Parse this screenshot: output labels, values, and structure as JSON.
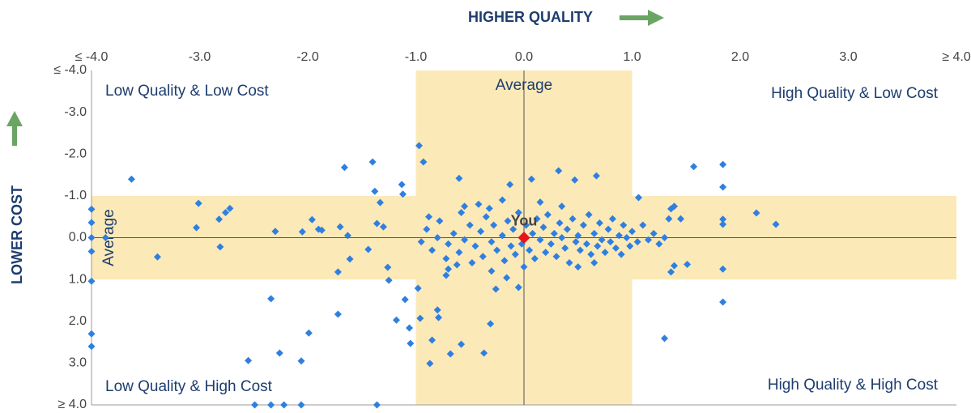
{
  "chart_data": {
    "type": "scatter",
    "x_label": "HIGHER QUALITY",
    "y_label": "LOWER COST",
    "xlim": [
      -4,
      4
    ],
    "ylim": [
      -4,
      4
    ],
    "y_inverted": true,
    "xticks": [
      {
        "value": -4,
        "label": "≤ -4.0"
      },
      {
        "value": -3,
        "label": "-3.0"
      },
      {
        "value": -2,
        "label": "-2.0"
      },
      {
        "value": -1,
        "label": "-1.0"
      },
      {
        "value": 0,
        "label": "0.0"
      },
      {
        "value": 1,
        "label": "1.0"
      },
      {
        "value": 2,
        "label": "2.0"
      },
      {
        "value": 3,
        "label": "3.0"
      },
      {
        "value": 4,
        "label": "≥ 4.0"
      }
    ],
    "yticks": [
      {
        "value": -4,
        "label": "≤ -4.0"
      },
      {
        "value": -3,
        "label": "-3.0"
      },
      {
        "value": -2,
        "label": "-2.0"
      },
      {
        "value": -1,
        "label": "-1.0"
      },
      {
        "value": 0,
        "label": "0.0"
      },
      {
        "value": 1,
        "label": "1.0"
      },
      {
        "value": 2,
        "label": "2.0"
      },
      {
        "value": 3,
        "label": "3.0"
      },
      {
        "value": 4,
        "label": "≥ 4.0"
      }
    ],
    "bands": {
      "x": [
        -1,
        1
      ],
      "y": [
        -1,
        1
      ],
      "color": "#fce9b8"
    },
    "average_labels": [
      "Average",
      "Average"
    ],
    "quadrant_labels": [
      "Low Quality & Low Cost",
      "High Quality & Low Cost",
      "Low Quality & High Cost",
      "High Quality & High Cost"
    ],
    "series": [
      {
        "color": "#2f7fe0",
        "x": [
          -3.63,
          -4,
          -4,
          -4,
          -4,
          -4,
          -4,
          -4,
          -3.87,
          -3.39,
          -3.01,
          -3.03,
          -2.82,
          -2.81,
          -2.76,
          -2.72,
          -2.34,
          -2.3,
          -2.55,
          -2.26,
          -2.49,
          -2.34,
          -2.22,
          -2.06,
          -2.06,
          -1.99,
          -2.05,
          -1.96,
          -1.9,
          -1.87,
          -1.72,
          -1.72,
          -1.7,
          -1.63,
          -1.61,
          -1.66,
          -1.4,
          -1.36,
          -1.38,
          -1.33,
          -1.36,
          -1.44,
          -1.3,
          -1.26,
          -1.25,
          -1.18,
          -1.12,
          -1.13,
          -1.1,
          -1.06,
          -1.05,
          -0.98,
          -0.97,
          -0.93,
          -0.96,
          -0.87,
          -0.85,
          -0.8,
          -0.79,
          -0.68,
          -0.72,
          -0.6,
          -0.58,
          -0.37,
          -0.31,
          -0.26,
          -0.16,
          -0.05,
          -0.13,
          0.07,
          0.32,
          0.47,
          0.67,
          1.06,
          1.3,
          1.36,
          1.39,
          1.51,
          1.57,
          1.84,
          1.84,
          1.84,
          1.84,
          1.84,
          1.84,
          2.15,
          2.33,
          1.39,
          1.36,
          1.45,
          1.34,
          -0.95,
          -0.9,
          -0.85,
          -0.8,
          -0.78,
          -0.72,
          -0.7,
          -0.65,
          -0.6,
          -0.58,
          -0.55,
          -0.5,
          -0.48,
          -0.45,
          -0.4,
          -0.38,
          -0.35,
          -0.3,
          -0.28,
          -0.25,
          -0.2,
          -0.18,
          -0.15,
          -0.12,
          -0.1,
          -0.08,
          -0.05,
          -0.02,
          0.02,
          0.05,
          0.08,
          0.1,
          0.12,
          0.15,
          0.18,
          0.2,
          0.22,
          0.25,
          0.28,
          0.3,
          0.33,
          0.35,
          0.38,
          0.4,
          0.42,
          0.45,
          0.48,
          0.5,
          0.52,
          0.55,
          0.58,
          0.6,
          0.62,
          0.65,
          0.68,
          0.7,
          0.72,
          0.75,
          0.78,
          0.8,
          0.82,
          0.85,
          0.88,
          0.9,
          0.92,
          0.95,
          0.98,
          1.0,
          1.05,
          1.1,
          1.15,
          1.2,
          1.25,
          1.3,
          -0.88,
          -0.62,
          -0.32,
          0.0,
          0.35,
          0.65,
          -0.42,
          -0.2,
          0.15,
          -0.55,
          -0.7,
          -0.3,
          0.5
        ],
        "values": [
          -1.4,
          -0.68,
          -0.36,
          0,
          0.33,
          1.04,
          2.3,
          2.6,
          0,
          0.46,
          -0.82,
          -0.24,
          -0.44,
          0.22,
          -0.6,
          -0.7,
          1.46,
          -0.15,
          2.94,
          2.76,
          4,
          4,
          4,
          4,
          2.95,
          2.28,
          -0.14,
          -0.43,
          -0.2,
          -0.18,
          1.83,
          0.82,
          -0.26,
          -0.05,
          0.51,
          -1.68,
          -1.81,
          4,
          -1.11,
          -0.84,
          -0.34,
          0.28,
          -0.26,
          0.71,
          1.02,
          1.97,
          -1.04,
          -1.27,
          1.48,
          2.16,
          2.53,
          1.21,
          -2.2,
          -1.81,
          1.93,
          3.01,
          2.45,
          1.73,
          1.91,
          2.78,
          0.9,
          -1.42,
          2.55,
          2.76,
          2.06,
          1.23,
          0.96,
          1.19,
          -1.27,
          -1.4,
          -1.6,
          -1.38,
          -1.48,
          -0.96,
          2.41,
          0.82,
          0.67,
          0.64,
          -1.7,
          -1.75,
          -1.21,
          -0.44,
          -0.32,
          0.75,
          1.54,
          -0.59,
          -0.32,
          -0.75,
          -0.69,
          -0.45,
          -0.45,
          0.1,
          -0.2,
          0.3,
          0.0,
          -0.4,
          0.5,
          0.15,
          -0.1,
          0.35,
          -0.6,
          0.05,
          -0.3,
          0.6,
          0.2,
          -0.15,
          0.45,
          -0.5,
          0.1,
          -0.3,
          0.3,
          -0.05,
          0.55,
          -0.4,
          0.2,
          -0.2,
          0.4,
          -0.6,
          0.15,
          -0.3,
          0.3,
          -0.1,
          0.5,
          -0.45,
          0.05,
          -0.25,
          0.35,
          -0.55,
          0.15,
          -0.1,
          0.45,
          -0.35,
          0.0,
          0.25,
          -0.2,
          0.6,
          -0.45,
          0.1,
          -0.05,
          0.3,
          -0.3,
          0.15,
          -0.55,
          0.4,
          -0.1,
          0.2,
          -0.35,
          0.05,
          0.35,
          -0.2,
          0.1,
          -0.45,
          0.25,
          -0.05,
          0.4,
          -0.3,
          0.0,
          0.2,
          -0.15,
          0.1,
          -0.3,
          0.05,
          -0.1,
          0.15,
          0.0,
          -0.5,
          0.65,
          -0.7,
          0.7,
          -0.75,
          0.6,
          -0.8,
          -0.9,
          -0.85,
          -0.75,
          0.75,
          0.8,
          0.7
        ]
      },
      {
        "name": "You",
        "color": "#e8141c",
        "x": [
          0
        ],
        "values": [
          0
        ]
      }
    ]
  }
}
